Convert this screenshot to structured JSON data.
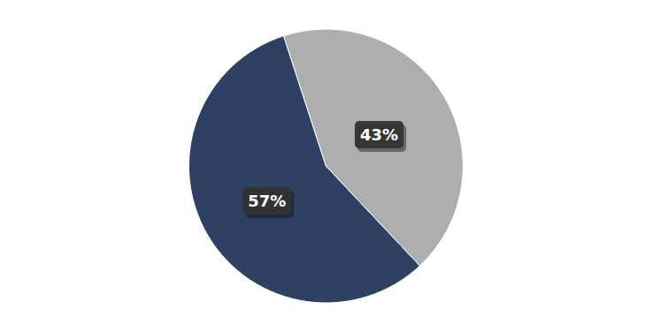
{
  "chart_data": {
    "type": "pie",
    "values": [
      57,
      43
    ],
    "value_labels": [
      "57%",
      "43%"
    ],
    "data_labels": true,
    "colors": [
      "#2E4164",
      "#AEADB0"
    ]
  }
}
